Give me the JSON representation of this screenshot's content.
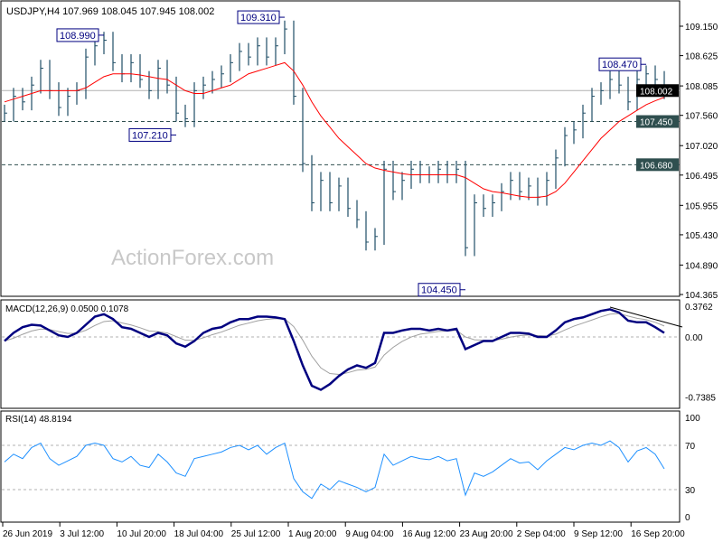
{
  "chart_data": {
    "type": "bar",
    "header": "USDJPY,H4  107.969 108.045 107.945 108.002",
    "symbol": "USDJPY",
    "timeframe": "H4",
    "ohlc_last": {
      "open": 107.969,
      "high": 108.045,
      "low": 107.945,
      "close": 108.002
    },
    "watermark": "ActionForex.com",
    "colors": {
      "bars": "#1f4e66",
      "ma": "#ff0000",
      "macd": "#000080",
      "signal": "#a0a0a0",
      "rsi": "#1e90ff",
      "label_box": "#000080",
      "level_tag": "#2f4f4f"
    },
    "x_ticks": [
      "26 Jun 2019",
      "3 Jul 12:00",
      "10 Jul 20:00",
      "18 Jul 04:00",
      "25 Jul 12:00",
      "1 Aug 20:00",
      "9 Aug 04:00",
      "16 Aug 12:00",
      "23 Aug 20:00",
      "2 Sep 04:00",
      "9 Sep 12:00",
      "16 Sep 20:00"
    ],
    "price_axis": {
      "ticks": [
        "109.150",
        "108.625",
        "108.085",
        "107.560",
        "107.020",
        "106.495",
        "105.955",
        "105.430",
        "104.890",
        "104.365"
      ],
      "ylim": [
        104.365,
        109.15
      ]
    },
    "current_price": "108.002",
    "levels": [
      {
        "value": "107.450",
        "style": "dashed"
      },
      {
        "value": "106.680",
        "style": "dashed"
      }
    ],
    "annotations": [
      {
        "label": "108.990",
        "bar": 11
      },
      {
        "label": "109.310",
        "bar": 31
      },
      {
        "label": "107.210",
        "bar": 19
      },
      {
        "label": "104.450",
        "bar": 51
      },
      {
        "label": "108.470",
        "bar": 71
      }
    ],
    "close": [
      107.6,
      107.9,
      107.8,
      108.1,
      108.4,
      108.0,
      107.7,
      107.9,
      108.0,
      108.6,
      108.8,
      108.9,
      108.5,
      108.3,
      108.5,
      108.2,
      108.0,
      108.4,
      108.1,
      107.6,
      107.5,
      108.0,
      108.1,
      108.2,
      108.3,
      108.5,
      108.7,
      108.6,
      108.8,
      108.6,
      108.8,
      109.1,
      107.9,
      106.7,
      106.0,
      106.4,
      106.0,
      106.3,
      105.9,
      105.7,
      105.3,
      105.4,
      106.6,
      106.2,
      106.4,
      106.6,
      106.5,
      106.5,
      106.6,
      106.5,
      106.6,
      105.2,
      106.0,
      105.9,
      106.0,
      106.2,
      106.4,
      106.2,
      106.3,
      106.1,
      106.4,
      106.8,
      107.2,
      107.3,
      107.6,
      107.9,
      108.0,
      108.2,
      108.1,
      107.8,
      108.2,
      108.3,
      108.2,
      108.0
    ],
    "ma": [
      107.8,
      107.85,
      107.9,
      107.95,
      108.0,
      108.0,
      108.0,
      108.0,
      108.0,
      108.05,
      108.15,
      108.25,
      108.3,
      108.3,
      108.3,
      108.28,
      108.25,
      108.22,
      108.2,
      108.1,
      108.0,
      107.95,
      107.95,
      108.0,
      108.05,
      108.1,
      108.2,
      108.3,
      108.35,
      108.4,
      108.45,
      108.5,
      108.35,
      108.1,
      107.8,
      107.55,
      107.35,
      107.15,
      107.0,
      106.85,
      106.7,
      106.62,
      106.58,
      106.55,
      106.52,
      106.5,
      106.5,
      106.5,
      106.5,
      106.5,
      106.5,
      106.45,
      106.35,
      106.25,
      106.2,
      106.18,
      106.15,
      106.12,
      106.1,
      106.1,
      106.12,
      106.2,
      106.35,
      106.55,
      106.75,
      106.95,
      107.15,
      107.3,
      107.45,
      107.55,
      107.65,
      107.75,
      107.82,
      107.88
    ],
    "macd": {
      "label": "MACD(12,26,9) 0.0500 0.1078",
      "ticks": [
        "0.3762",
        "0.00",
        "-0.7385"
      ],
      "ylim": [
        -0.7385,
        0.3762
      ],
      "main": [
        -0.05,
        0.05,
        0.12,
        0.15,
        0.14,
        0.08,
        0.02,
        0.0,
        0.05,
        0.15,
        0.25,
        0.28,
        0.22,
        0.12,
        0.1,
        0.05,
        0.0,
        0.05,
        0.02,
        -0.08,
        -0.12,
        -0.05,
        0.05,
        0.1,
        0.12,
        0.18,
        0.22,
        0.22,
        0.25,
        0.25,
        0.24,
        0.22,
        -0.05,
        -0.35,
        -0.6,
        -0.65,
        -0.58,
        -0.48,
        -0.4,
        -0.35,
        -0.38,
        -0.32,
        0.05,
        0.05,
        0.08,
        0.1,
        0.1,
        0.08,
        0.1,
        0.08,
        0.1,
        -0.15,
        -0.1,
        -0.05,
        -0.05,
        0.0,
        0.05,
        0.05,
        0.04,
        0.0,
        0.0,
        0.08,
        0.18,
        0.22,
        0.24,
        0.28,
        0.32,
        0.34,
        0.3,
        0.2,
        0.18,
        0.18,
        0.12,
        0.05
      ]
    },
    "rsi": {
      "label": "RSI(14) 48.8194",
      "ticks": [
        "100",
        "70",
        "30",
        "0"
      ],
      "levels": [
        70,
        30
      ],
      "ylim": [
        0,
        100
      ],
      "values": [
        55,
        62,
        58,
        68,
        72,
        58,
        52,
        56,
        60,
        70,
        72,
        70,
        58,
        55,
        60,
        52,
        50,
        62,
        55,
        45,
        42,
        58,
        60,
        62,
        64,
        68,
        70,
        66,
        70,
        62,
        68,
        72,
        40,
        28,
        22,
        35,
        30,
        38,
        35,
        32,
        28,
        32,
        62,
        52,
        56,
        60,
        58,
        57,
        60,
        56,
        58,
        25,
        45,
        42,
        46,
        52,
        58,
        54,
        55,
        48,
        56,
        62,
        68,
        66,
        70,
        72,
        70,
        74,
        68,
        55,
        65,
        68,
        62,
        48.8
      ]
    }
  }
}
